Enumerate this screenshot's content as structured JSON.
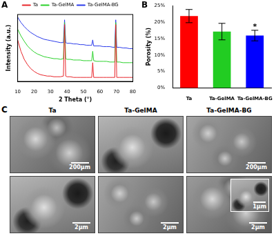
{
  "chart_data": [
    {
      "type": "line",
      "panel": "A",
      "x_label": "2 Theta (°)",
      "y_label": "Intensity (a.u.)",
      "x": [
        10,
        12,
        14,
        16,
        18,
        20,
        22,
        24,
        26,
        28,
        30,
        32,
        34,
        36,
        37.8,
        38.5,
        39.2,
        40,
        42,
        44,
        46,
        48,
        50,
        52,
        54,
        55,
        55.6,
        56.2,
        58,
        60,
        62,
        64,
        66,
        68,
        69,
        69.6,
        70.2,
        72,
        74,
        76,
        78,
        80
      ],
      "series": [
        {
          "name": "Ta",
          "color": "#e8262b",
          "values": [
            62,
            45,
            33,
            25,
            19,
            15,
            12,
            10,
            9,
            8,
            8,
            7,
            7,
            7,
            8,
            85,
            8,
            7,
            7,
            6,
            6,
            6,
            6,
            6,
            6,
            6,
            28,
            6,
            6,
            6,
            6,
            6,
            6,
            6,
            6,
            85,
            6,
            6,
            6,
            6,
            6,
            6
          ]
        },
        {
          "name": "Ta-GelMA",
          "color": "#2bd12b",
          "values": [
            78,
            68,
            60,
            53,
            48,
            44,
            41,
            39,
            37,
            36,
            35,
            34,
            34,
            33,
            34,
            88,
            34,
            33,
            33,
            32,
            32,
            32,
            31,
            31,
            31,
            31,
            45,
            31,
            30,
            30,
            30,
            30,
            29,
            29,
            29,
            88,
            29,
            29,
            28,
            28,
            28,
            28
          ]
        },
        {
          "name": "Ta-GelMA-BG",
          "color": "#2b3bea",
          "values": [
            96,
            88,
            82,
            77,
            73,
            70,
            67,
            65,
            63,
            62,
            61,
            60,
            59,
            58,
            58,
            92,
            58,
            57,
            57,
            56,
            56,
            55,
            55,
            54,
            54,
            54,
            62,
            53,
            53,
            53,
            52,
            52,
            52,
            51,
            51,
            92,
            51,
            51,
            50,
            50,
            49,
            49
          ]
        }
      ],
      "xlim": [
        10,
        80
      ],
      "xticks": [
        10,
        20,
        30,
        40,
        50,
        60,
        70,
        80
      ],
      "ylim": [
        0,
        100
      ],
      "yticks": [],
      "tick_labels": "x",
      "grid": false,
      "legend": "top"
    },
    {
      "type": "bar",
      "panel": "B",
      "y_label": "Porosity (%)",
      "categories": [
        "Ta",
        "Ta-GelMA",
        "Ta-GelMA-BG"
      ],
      "values": [
        21.8,
        17.1,
        15.9
      ],
      "errors": [
        2.0,
        2.5,
        1.6
      ],
      "colors": [
        "#ff0000",
        "#22cc22",
        "#0000ff"
      ],
      "ylim": [
        0,
        25
      ],
      "yticks": [
        {
          "value": 0,
          "label": "0%"
        },
        {
          "value": 5,
          "label": "5%"
        },
        {
          "value": 10,
          "label": "10%"
        },
        {
          "value": 15,
          "label": "15%"
        },
        {
          "value": 20,
          "label": "20%"
        },
        {
          "value": 25,
          "label": "25%"
        }
      ],
      "annotations": [
        {
          "text": "*",
          "category": "Ta-GelMA-BG"
        }
      ],
      "grid": false
    }
  ],
  "panel_c": {
    "panel": "C",
    "columns": [
      "Ta",
      "Ta-GelMA",
      "Ta-GelMA-BG"
    ],
    "scale_bars": [
      [
        "200μm",
        null,
        "200μm"
      ],
      [
        "2μm",
        "2μm",
        "2μm"
      ]
    ],
    "inset": {
      "column": "Ta-GelMA-BG",
      "row": 1,
      "scale_bar": "1μm"
    }
  }
}
